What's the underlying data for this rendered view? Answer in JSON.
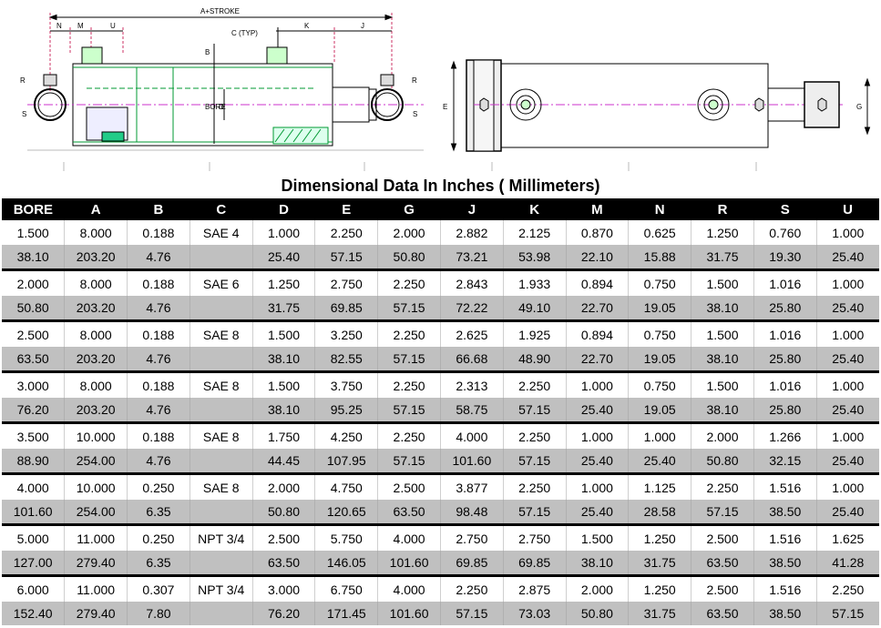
{
  "title": "Dimensional Data In Inches ( Millimeters)",
  "drawing": {
    "labels": {
      "stroke": "A+STROKE",
      "n": "N",
      "m": "M",
      "u": "U",
      "c_typ": "C (TYP)",
      "k": "K",
      "j": "J",
      "b": "B",
      "bore": "BORE",
      "d": "D",
      "r": "R",
      "s": "S",
      "e": "E",
      "g": "G"
    }
  },
  "columns": [
    "BORE",
    "A",
    "B",
    "C",
    "D",
    "E",
    "G",
    "J",
    "K",
    "M",
    "N",
    "R",
    "S",
    "U"
  ],
  "rows": [
    {
      "inch": [
        "1.500",
        "8.000",
        "0.188",
        "SAE 4",
        "1.000",
        "2.250",
        "2.000",
        "2.882",
        "2.125",
        "0.870",
        "0.625",
        "1.250",
        "0.760",
        "1.000"
      ],
      "mm": [
        "38.10",
        "203.20",
        "4.76",
        "",
        "25.40",
        "57.15",
        "50.80",
        "73.21",
        "53.98",
        "22.10",
        "15.88",
        "31.75",
        "19.30",
        "25.40"
      ]
    },
    {
      "inch": [
        "2.000",
        "8.000",
        "0.188",
        "SAE 6",
        "1.250",
        "2.750",
        "2.250",
        "2.843",
        "1.933",
        "0.894",
        "0.750",
        "1.500",
        "1.016",
        "1.000"
      ],
      "mm": [
        "50.80",
        "203.20",
        "4.76",
        "",
        "31.75",
        "69.85",
        "57.15",
        "72.22",
        "49.10",
        "22.70",
        "19.05",
        "38.10",
        "25.80",
        "25.40"
      ]
    },
    {
      "inch": [
        "2.500",
        "8.000",
        "0.188",
        "SAE 8",
        "1.500",
        "3.250",
        "2.250",
        "2.625",
        "1.925",
        "0.894",
        "0.750",
        "1.500",
        "1.016",
        "1.000"
      ],
      "mm": [
        "63.50",
        "203.20",
        "4.76",
        "",
        "38.10",
        "82.55",
        "57.15",
        "66.68",
        "48.90",
        "22.70",
        "19.05",
        "38.10",
        "25.80",
        "25.40"
      ]
    },
    {
      "inch": [
        "3.000",
        "8.000",
        "0.188",
        "SAE 8",
        "1.500",
        "3.750",
        "2.250",
        "2.313",
        "2.250",
        "1.000",
        "0.750",
        "1.500",
        "1.016",
        "1.000"
      ],
      "mm": [
        "76.20",
        "203.20",
        "4.76",
        "",
        "38.10",
        "95.25",
        "57.15",
        "58.75",
        "57.15",
        "25.40",
        "19.05",
        "38.10",
        "25.80",
        "25.40"
      ]
    },
    {
      "inch": [
        "3.500",
        "10.000",
        "0.188",
        "SAE 8",
        "1.750",
        "4.250",
        "2.250",
        "4.000",
        "2.250",
        "1.000",
        "1.000",
        "2.000",
        "1.266",
        "1.000"
      ],
      "mm": [
        "88.90",
        "254.00",
        "4.76",
        "",
        "44.45",
        "107.95",
        "57.15",
        "101.60",
        "57.15",
        "25.40",
        "25.40",
        "50.80",
        "32.15",
        "25.40"
      ]
    },
    {
      "inch": [
        "4.000",
        "10.000",
        "0.250",
        "SAE 8",
        "2.000",
        "4.750",
        "2.500",
        "3.877",
        "2.250",
        "1.000",
        "1.125",
        "2.250",
        "1.516",
        "1.000"
      ],
      "mm": [
        "101.60",
        "254.00",
        "6.35",
        "",
        "50.80",
        "120.65",
        "63.50",
        "98.48",
        "57.15",
        "25.40",
        "28.58",
        "57.15",
        "38.50",
        "25.40"
      ]
    },
    {
      "inch": [
        "5.000",
        "11.000",
        "0.250",
        "NPT 3/4",
        "2.500",
        "5.750",
        "4.000",
        "2.750",
        "2.750",
        "1.500",
        "1.250",
        "2.500",
        "1.516",
        "1.625"
      ],
      "mm": [
        "127.00",
        "279.40",
        "6.35",
        "",
        "63.50",
        "146.05",
        "101.60",
        "69.85",
        "69.85",
        "38.10",
        "31.75",
        "63.50",
        "38.50",
        "41.28"
      ]
    },
    {
      "inch": [
        "6.000",
        "11.000",
        "0.307",
        "NPT 3/4",
        "3.000",
        "6.750",
        "4.000",
        "2.250",
        "2.875",
        "2.000",
        "1.250",
        "2.500",
        "1.516",
        "2.250"
      ],
      "mm": [
        "152.40",
        "279.40",
        "7.80",
        "",
        "76.20",
        "171.45",
        "101.60",
        "57.15",
        "73.03",
        "50.80",
        "31.75",
        "63.50",
        "38.50",
        "57.15"
      ]
    }
  ]
}
